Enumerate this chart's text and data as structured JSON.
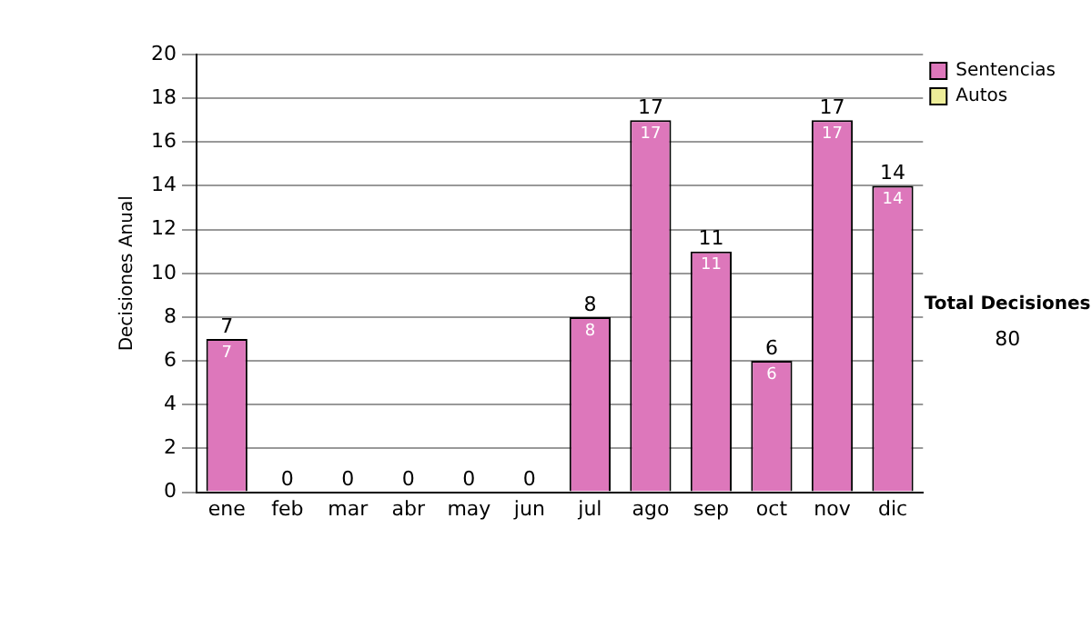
{
  "chart_data": {
    "type": "bar",
    "ylabel": "Decisiones Anual",
    "categories": [
      "ene",
      "feb",
      "mar",
      "abr",
      "may",
      "jun",
      "jul",
      "ago",
      "sep",
      "oct",
      "nov",
      "dic"
    ],
    "series": [
      {
        "name": "Sentencias",
        "color": "#dd77bb",
        "values": [
          7,
          0,
          0,
          0,
          0,
          0,
          8,
          17,
          11,
          6,
          17,
          14
        ],
        "value_labels": [
          "7",
          null,
          null,
          null,
          null,
          null,
          "8",
          "17",
          "11",
          "6",
          "17",
          "14"
        ]
      },
      {
        "name": "Autos",
        "color": "#eeee99",
        "values": [
          0,
          0,
          0,
          0,
          0,
          0,
          0,
          0,
          0,
          0,
          0,
          0
        ]
      }
    ],
    "stacked": true,
    "totals": [
      "7",
      "0",
      "0",
      "0",
      "0",
      "0",
      "8",
      "17",
      "11",
      "6",
      "17",
      "14"
    ],
    "ylim": [
      0,
      20
    ],
    "yticks": [
      0,
      2,
      4,
      6,
      8,
      10,
      12,
      14,
      16,
      18,
      20
    ],
    "grid": "y",
    "legend": "right",
    "annotations": [
      "Total Decisiones",
      "80"
    ]
  }
}
